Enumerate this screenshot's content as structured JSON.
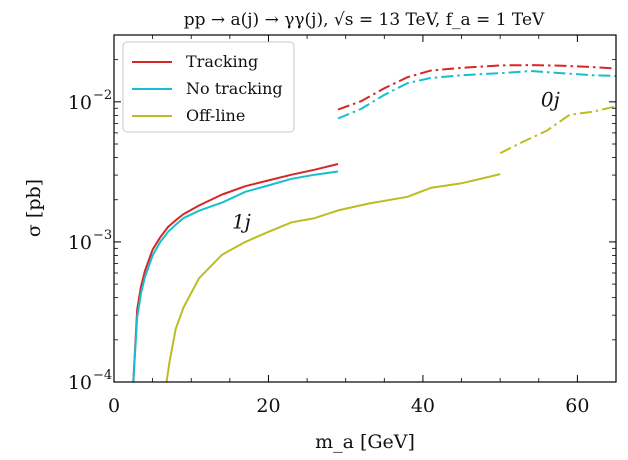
{
  "chart_data": {
    "type": "line",
    "title": "pp → a(j) → γγ(j), √s = 13 TeV, f_a = 1 TeV",
    "xlabel": "m_a [GeV]",
    "ylabel": "σ [pb]",
    "xlim": [
      0,
      65
    ],
    "ylim": [
      0.0001,
      0.03
    ],
    "y_scale": "log",
    "x_ticks": [
      0,
      20,
      40,
      60
    ],
    "x_tick_labels": [
      "0",
      "20",
      "40",
      "60"
    ],
    "y_ticks": [
      0.0001,
      0.001,
      0.01
    ],
    "y_tick_labels": [
      "10^-4",
      "10^-3",
      "10^-2"
    ],
    "grid": false,
    "legend_position": "top-left",
    "annotations": [
      {
        "text": "1j",
        "x": 16.5,
        "y": 0.00125
      },
      {
        "text": "0j",
        "x": 56.5,
        "y": 0.0093
      }
    ],
    "series": [
      {
        "name": "Tracking",
        "color": "#d62728",
        "style": "solid",
        "x": [
          2.5,
          3,
          3.5,
          4,
          5,
          6,
          7,
          8,
          9,
          11,
          14,
          17,
          20,
          23,
          26,
          29
        ],
        "y": [
          0.0001,
          0.00033,
          0.00048,
          0.00062,
          0.00088,
          0.00108,
          0.00128,
          0.00143,
          0.00158,
          0.00182,
          0.00218,
          0.0025,
          0.00275,
          0.00302,
          0.00328,
          0.0036
        ]
      },
      {
        "name": "No tracking",
        "color": "#17becf",
        "style": "solid",
        "x": [
          2.5,
          3,
          3.5,
          4,
          5,
          6,
          7,
          8,
          9,
          11,
          14,
          17,
          20,
          23,
          26,
          29
        ],
        "y": [
          0.0001,
          0.00029,
          0.00043,
          0.00056,
          0.0008,
          0.001,
          0.00118,
          0.00133,
          0.00148,
          0.00167,
          0.00191,
          0.00228,
          0.00253,
          0.00282,
          0.00302,
          0.00318
        ]
      },
      {
        "name": "Off-line",
        "color": "#bcbd22",
        "style": "solid",
        "x": [
          6.8,
          7.2,
          8,
          9,
          11,
          14,
          17,
          20,
          23,
          26,
          29,
          33,
          38,
          41,
          45,
          50
        ],
        "y": [
          0.0001,
          0.00014,
          0.00024,
          0.00034,
          0.00055,
          0.00081,
          0.001,
          0.00118,
          0.00138,
          0.00148,
          0.00168,
          0.00188,
          0.0021,
          0.00243,
          0.00262,
          0.00305
        ]
      },
      {
        "color": "#d62728",
        "style": "dashdot",
        "x": [
          29,
          32,
          35,
          38,
          41,
          45,
          50,
          54,
          58,
          62,
          65
        ],
        "y": [
          0.0088,
          0.0101,
          0.0125,
          0.015,
          0.0167,
          0.0175,
          0.0182,
          0.0183,
          0.0181,
          0.0177,
          0.0173
        ]
      },
      {
        "color": "#17becf",
        "style": "dashdot",
        "x": [
          29,
          32,
          35,
          38,
          41,
          45,
          50,
          54,
          58,
          62,
          65
        ],
        "y": [
          0.0076,
          0.0089,
          0.0112,
          0.0136,
          0.0148,
          0.0155,
          0.016,
          0.0166,
          0.016,
          0.0155,
          0.0153
        ]
      },
      {
        "color": "#bcbd22",
        "style": "dashdot",
        "x": [
          50,
          53,
          56,
          59,
          62,
          65
        ],
        "y": [
          0.0043,
          0.0052,
          0.0062,
          0.0081,
          0.0085,
          0.0093
        ]
      }
    ]
  }
}
